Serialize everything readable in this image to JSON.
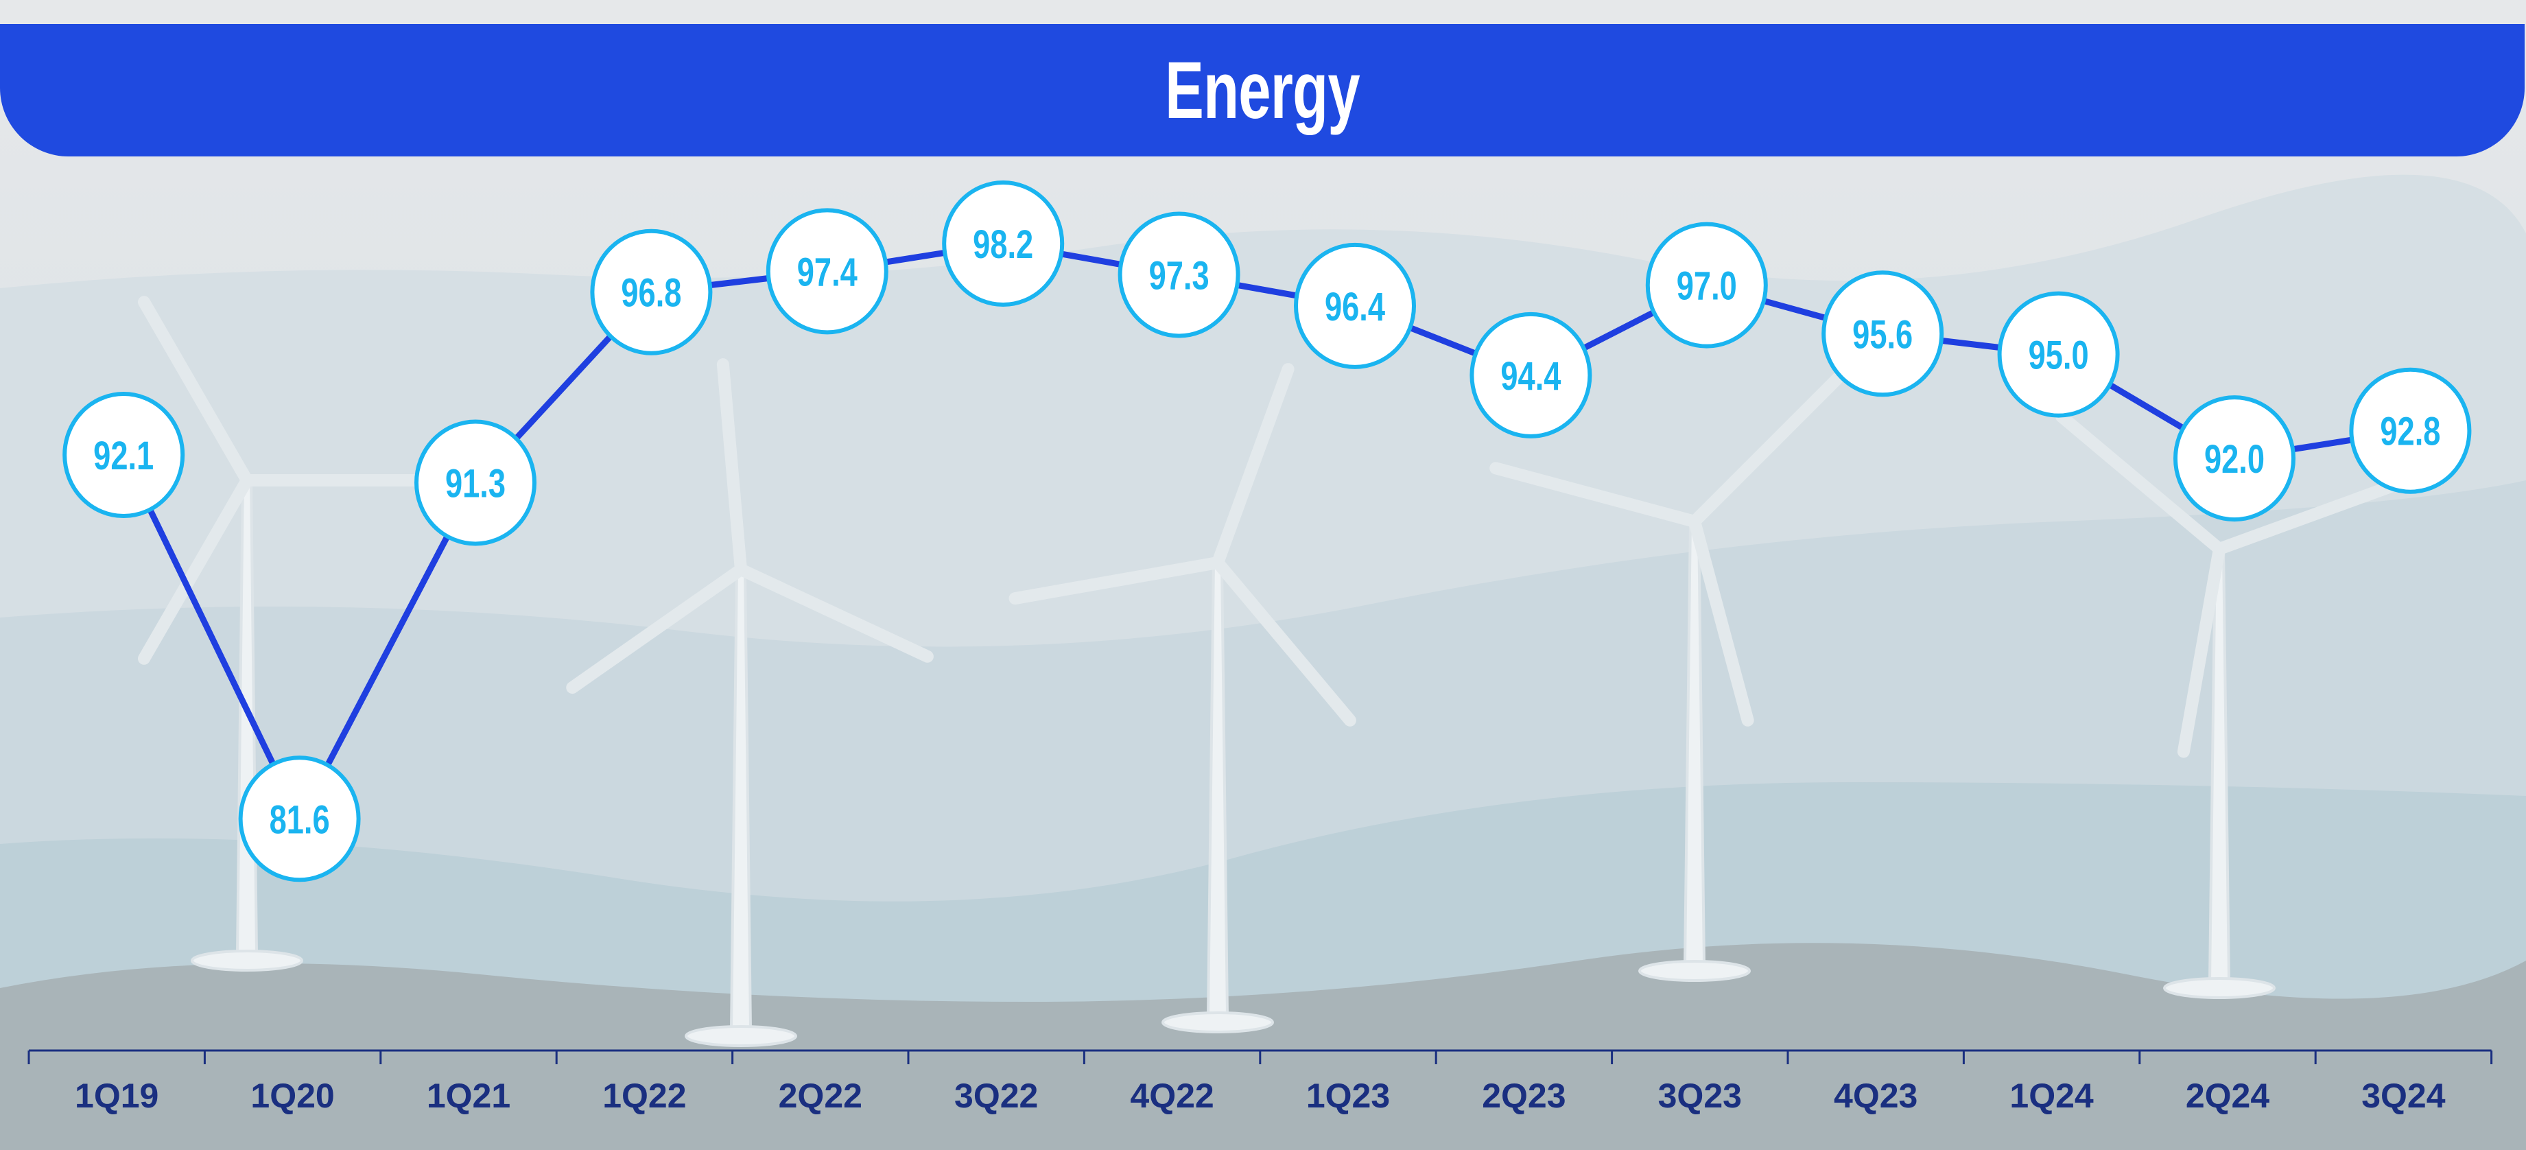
{
  "chart_data": {
    "type": "line",
    "title": "Energy",
    "categories": [
      "1Q19",
      "1Q20",
      "1Q21",
      "1Q22",
      "2Q22",
      "3Q22",
      "4Q22",
      "1Q23",
      "2Q23",
      "3Q23",
      "4Q23",
      "1Q24",
      "2Q24",
      "3Q24"
    ],
    "series": [
      {
        "name": "Energy",
        "values": [
          92.1,
          81.6,
          91.3,
          96.8,
          97.4,
          98.2,
          97.3,
          96.4,
          94.4,
          97.0,
          95.6,
          95.0,
          92.0,
          92.8
        ]
      }
    ],
    "xlabel": "",
    "ylabel": "",
    "ylim": [
      80,
      100
    ],
    "grid": false,
    "legend": "none",
    "colors": {
      "title_bar": "#1F4AE0",
      "line": "#1F3FE0",
      "marker": "#1AB4F0",
      "axis_label": "#1A2F80"
    }
  }
}
